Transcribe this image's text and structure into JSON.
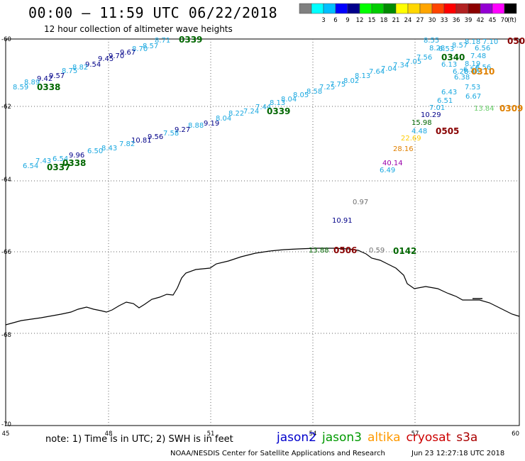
{
  "header": {
    "title": "00:00 – 11:59 UTC 06/22/2018",
    "subtitle": "12 hour collection of altimeter wave heights"
  },
  "colorbar": {
    "unit": "(ft)",
    "swatches": [
      {
        "color": "#808080",
        "label": ""
      },
      {
        "color": "#00ffff",
        "label": "3"
      },
      {
        "color": "#00bfff",
        "label": "6"
      },
      {
        "color": "#0000ff",
        "label": "9"
      },
      {
        "color": "#00008b",
        "label": "12"
      },
      {
        "color": "#00ff00",
        "label": "15"
      },
      {
        "color": "#00cd00",
        "label": "18"
      },
      {
        "color": "#008b00",
        "label": "21"
      },
      {
        "color": "#ffff00",
        "label": "24"
      },
      {
        "color": "#ffd700",
        "label": "27"
      },
      {
        "color": "#ffa500",
        "label": "30"
      },
      {
        "color": "#ff4500",
        "label": "33"
      },
      {
        "color": "#ff0000",
        "label": "36"
      },
      {
        "color": "#b22222",
        "label": "39"
      },
      {
        "color": "#8b0000",
        "label": "42"
      },
      {
        "color": "#9400d3",
        "label": "45"
      },
      {
        "color": "#ff00ff",
        "label": "70"
      },
      {
        "color": "#000000",
        "label": ""
      }
    ]
  },
  "map": {
    "lon_range": [
      45,
      60
    ],
    "lat_range": [
      -70,
      -60
    ],
    "lon_ticks": [
      "45",
      "48",
      "51",
      "54",
      "57",
      "60"
    ],
    "lat_ticks": [
      "-60",
      "-62",
      "-64",
      "-66",
      "-68",
      "-70"
    ],
    "grid": "dotted"
  },
  "colors": {
    "cyan": "#1aa8e0",
    "navy": "#000088",
    "green": "#006600",
    "orange": "#e08000",
    "darkred": "#880000",
    "purple": "#9900aa",
    "gray": "#707070",
    "lightgreen": "#66cc66",
    "gold": "#ffcc00"
  },
  "tracks": {
    "track_a": [
      "8.71",
      "8.57",
      "8.70",
      "9.67",
      "9.70",
      "9.45",
      "9.54",
      "8.82",
      "8.75",
      "9.57",
      "9.42",
      "8.89",
      "8.59"
    ],
    "track_b": [
      "8.55",
      "8.57",
      "8.18",
      "7.10",
      "7.56",
      "7.05",
      "7.34",
      "7.04",
      "7.64",
      "8.13",
      "8.02",
      "7.75",
      "7.25",
      "8.58",
      "8.05",
      "8.04",
      "8.13",
      "7.44",
      "7.24",
      "8.22",
      "8.04",
      "8.88",
      "9.19",
      "9.27",
      "7.58",
      "9.56",
      "10.81",
      "7.82",
      "8.43",
      "6.50",
      "9.96",
      "6.54",
      "7.43",
      "6.54"
    ],
    "track_c": [
      "8.28",
      "6.53",
      "7.48",
      "6.13",
      "8.19",
      "6.56",
      "6.38",
      "6.28",
      "6.46",
      "7.53",
      "6.43",
      "6.67",
      "6.51",
      "7.01",
      "10.29",
      "15.98",
      "4.48",
      "22.69",
      "28.16",
      "40.14",
      "6.49"
    ],
    "loose": [
      "13.84",
      "0.97",
      "10.91",
      "13.88",
      "0.59",
      "6.50",
      "6.56"
    ]
  },
  "times": [
    "0339",
    "0338",
    "0340",
    "050",
    "0310",
    "0309",
    "0505",
    "0337",
    "0338",
    "0339",
    "0506",
    "0142"
  ],
  "footer": {
    "note": "note: 1) Time is in UTC; 2) SWH is in feet",
    "satellites": [
      {
        "name": "jason2",
        "color": "#0000cc"
      },
      {
        "name": "jason3",
        "color": "#009900"
      },
      {
        "name": "altika",
        "color": "#ff9900"
      },
      {
        "name": "cryosat",
        "color": "#cc0000"
      },
      {
        "name": "s3a",
        "color": "#aa0000"
      }
    ],
    "credit": "NOAA/NESDIS Center for Satellite Applications and Research",
    "timestamp": "Jun 23 12:27:18 UTC 2018"
  }
}
